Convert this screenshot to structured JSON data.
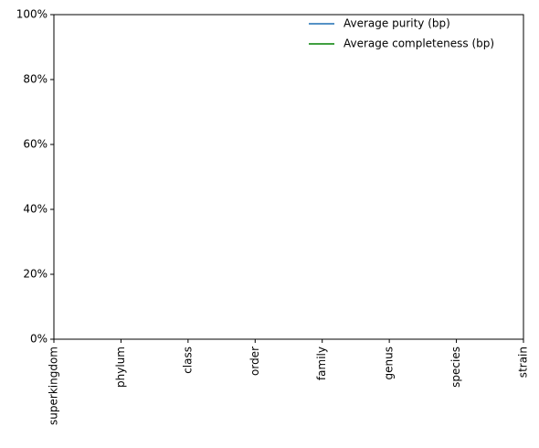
{
  "chart_data": {
    "type": "line",
    "categories": [
      "superkingdom",
      "phylum",
      "class",
      "order",
      "family",
      "genus",
      "species",
      "strain"
    ],
    "series": [
      {
        "name": "Average purity (bp)",
        "color": "#1f6fb4",
        "values": [
          null,
          null,
          null,
          null,
          null,
          null,
          null,
          null
        ]
      },
      {
        "name": "Average completeness (bp)",
        "color": "#008000",
        "values": [
          null,
          null,
          null,
          null,
          null,
          null,
          null,
          null
        ]
      }
    ],
    "ylim": [
      0,
      100
    ],
    "yticks": [
      {
        "value": 0,
        "label": "0%"
      },
      {
        "value": 20,
        "label": "20%"
      },
      {
        "value": 40,
        "label": "40%"
      },
      {
        "value": 60,
        "label": "60%"
      },
      {
        "value": 80,
        "label": "80%"
      },
      {
        "value": 100,
        "label": "100%"
      }
    ],
    "grid": false,
    "legend": "upper right"
  }
}
